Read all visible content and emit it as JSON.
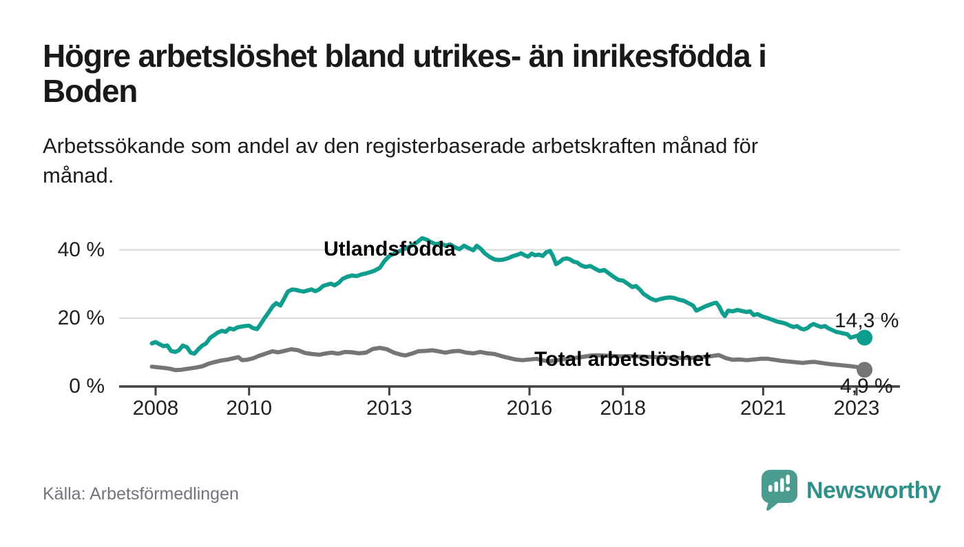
{
  "title": {
    "line1": "Högre arbetslöshet bland utrikes- än inrikesfödda i",
    "line2": "Boden"
  },
  "subtitle": {
    "line1": "Arbetssökande som andel av den registerbaserade arbetskraften månad för",
    "line2": "månad."
  },
  "source": "Källa: Arbetsförmedlingen",
  "logo": {
    "text": "Newsworthy",
    "icon": "speech-bubble-bar-chart-icon",
    "text_color": "#2f9089",
    "bubble_color": "#4a9c91"
  },
  "colors": {
    "background": "#ffffff",
    "title_text": "#191919",
    "tick_text": "#222222",
    "gridline": "#dadada",
    "axis": "#404040",
    "value_label_text": "#1a1a1a",
    "source_text": "#73737b"
  },
  "chart_data": {
    "type": "line",
    "title": "Högre arbetslöshet bland utrikes- än inrikesfödda i Boden",
    "xlabel": "",
    "ylabel": "",
    "legend_position": "inline-labels",
    "grid": "horizontal",
    "x_axis": {
      "ticks": [
        2008,
        2010,
        2013,
        2016,
        2018,
        2021,
        2023
      ],
      "min": 2007.9,
      "max": 2023.9,
      "unit": "year-month"
    },
    "y_axis": {
      "ticks": [
        {
          "label": "0 %",
          "value": 0
        },
        {
          "label": "20 %",
          "value": 20
        },
        {
          "label": "40 %",
          "value": 40
        }
      ],
      "min": 0,
      "max": 44,
      "unit": "%"
    },
    "series": [
      {
        "name": "Utlandsfödda",
        "color": "#0f9e8e",
        "label_color": "#0f9e8e",
        "end_label": "14,3 %",
        "end_value": 14.3,
        "points": [
          [
            2007.92,
            12.6
          ],
          [
            2008.0,
            13.0
          ],
          [
            2008.08,
            12.4
          ],
          [
            2008.17,
            11.8
          ],
          [
            2008.25,
            12.0
          ],
          [
            2008.33,
            10.4
          ],
          [
            2008.42,
            10.1
          ],
          [
            2008.5,
            10.6
          ],
          [
            2008.58,
            12.0
          ],
          [
            2008.67,
            11.5
          ],
          [
            2008.75,
            9.9
          ],
          [
            2008.83,
            9.6
          ],
          [
            2008.92,
            11.0
          ],
          [
            2009.0,
            12.0
          ],
          [
            2009.08,
            12.6
          ],
          [
            2009.17,
            14.3
          ],
          [
            2009.25,
            15.0
          ],
          [
            2009.33,
            15.8
          ],
          [
            2009.42,
            16.3
          ],
          [
            2009.5,
            16.0
          ],
          [
            2009.58,
            17.0
          ],
          [
            2009.67,
            16.7
          ],
          [
            2009.75,
            17.3
          ],
          [
            2009.83,
            17.5
          ],
          [
            2009.92,
            17.7
          ],
          [
            2010.0,
            17.8
          ],
          [
            2010.08,
            17.1
          ],
          [
            2010.17,
            16.8
          ],
          [
            2010.25,
            18.3
          ],
          [
            2010.33,
            20.0
          ],
          [
            2010.42,
            21.7
          ],
          [
            2010.5,
            23.4
          ],
          [
            2010.58,
            24.4
          ],
          [
            2010.67,
            23.7
          ],
          [
            2010.75,
            25.7
          ],
          [
            2010.83,
            27.8
          ],
          [
            2010.92,
            28.4
          ],
          [
            2011.0,
            28.3
          ],
          [
            2011.08,
            28.0
          ],
          [
            2011.17,
            27.8
          ],
          [
            2011.25,
            28.1
          ],
          [
            2011.33,
            28.4
          ],
          [
            2011.42,
            27.9
          ],
          [
            2011.5,
            28.4
          ],
          [
            2011.58,
            29.4
          ],
          [
            2011.67,
            29.8
          ],
          [
            2011.75,
            30.1
          ],
          [
            2011.83,
            29.6
          ],
          [
            2011.92,
            30.4
          ],
          [
            2012.0,
            31.5
          ],
          [
            2012.1,
            32.1
          ],
          [
            2012.2,
            32.5
          ],
          [
            2012.3,
            32.3
          ],
          [
            2012.4,
            32.8
          ],
          [
            2012.5,
            33.1
          ],
          [
            2012.6,
            33.5
          ],
          [
            2012.7,
            34.0
          ],
          [
            2012.8,
            34.8
          ],
          [
            2012.9,
            36.8
          ],
          [
            2013.0,
            38.2
          ],
          [
            2013.15,
            39.2
          ],
          [
            2013.3,
            40.1
          ],
          [
            2013.45,
            41.0
          ],
          [
            2013.6,
            42.3
          ],
          [
            2013.7,
            43.4
          ],
          [
            2013.8,
            43.0
          ],
          [
            2013.9,
            42.2
          ],
          [
            2014.0,
            41.6
          ],
          [
            2014.1,
            42.0
          ],
          [
            2014.2,
            41.2
          ],
          [
            2014.3,
            41.6
          ],
          [
            2014.4,
            40.8
          ],
          [
            2014.5,
            40.2
          ],
          [
            2014.6,
            41.2
          ],
          [
            2014.7,
            40.5
          ],
          [
            2014.8,
            39.9
          ],
          [
            2014.87,
            41.2
          ],
          [
            2014.95,
            40.4
          ],
          [
            2015.05,
            38.9
          ],
          [
            2015.15,
            37.9
          ],
          [
            2015.25,
            37.2
          ],
          [
            2015.35,
            37.0
          ],
          [
            2015.45,
            37.2
          ],
          [
            2015.55,
            37.6
          ],
          [
            2015.65,
            38.2
          ],
          [
            2015.75,
            38.6
          ],
          [
            2015.82,
            39.0
          ],
          [
            2015.9,
            38.4
          ],
          [
            2015.97,
            38.0
          ],
          [
            2016.05,
            38.9
          ],
          [
            2016.12,
            38.4
          ],
          [
            2016.2,
            38.6
          ],
          [
            2016.28,
            38.2
          ],
          [
            2016.36,
            39.3
          ],
          [
            2016.44,
            39.7
          ],
          [
            2016.5,
            38.2
          ],
          [
            2016.57,
            35.8
          ],
          [
            2016.65,
            36.5
          ],
          [
            2016.72,
            37.3
          ],
          [
            2016.8,
            37.5
          ],
          [
            2016.87,
            37.2
          ],
          [
            2016.95,
            36.5
          ],
          [
            2017.02,
            36.3
          ],
          [
            2017.1,
            35.5
          ],
          [
            2017.2,
            35.0
          ],
          [
            2017.3,
            35.3
          ],
          [
            2017.4,
            34.5
          ],
          [
            2017.5,
            33.8
          ],
          [
            2017.6,
            34.1
          ],
          [
            2017.7,
            33.1
          ],
          [
            2017.8,
            32.1
          ],
          [
            2017.9,
            31.2
          ],
          [
            2018.0,
            31.0
          ],
          [
            2018.1,
            30.1
          ],
          [
            2018.2,
            29.1
          ],
          [
            2018.28,
            29.4
          ],
          [
            2018.36,
            28.4
          ],
          [
            2018.44,
            27.1
          ],
          [
            2018.52,
            26.4
          ],
          [
            2018.6,
            25.7
          ],
          [
            2018.7,
            25.2
          ],
          [
            2018.8,
            25.6
          ],
          [
            2018.9,
            25.9
          ],
          [
            2019.0,
            26.1
          ],
          [
            2019.1,
            25.9
          ],
          [
            2019.2,
            25.4
          ],
          [
            2019.3,
            25.1
          ],
          [
            2019.4,
            24.4
          ],
          [
            2019.5,
            23.7
          ],
          [
            2019.57,
            22.2
          ],
          [
            2019.65,
            22.7
          ],
          [
            2019.75,
            23.4
          ],
          [
            2019.85,
            23.9
          ],
          [
            2019.95,
            24.4
          ],
          [
            2020.0,
            24.5
          ],
          [
            2020.06,
            23.4
          ],
          [
            2020.12,
            21.7
          ],
          [
            2020.18,
            20.6
          ],
          [
            2020.25,
            22.2
          ],
          [
            2020.35,
            22.0
          ],
          [
            2020.45,
            22.4
          ],
          [
            2020.55,
            22.1
          ],
          [
            2020.65,
            21.8
          ],
          [
            2020.72,
            22.0
          ],
          [
            2020.8,
            20.9
          ],
          [
            2020.88,
            21.2
          ],
          [
            2020.95,
            20.7
          ],
          [
            2021.0,
            20.4
          ],
          [
            2021.1,
            20.0
          ],
          [
            2021.2,
            19.5
          ],
          [
            2021.3,
            19.0
          ],
          [
            2021.4,
            18.7
          ],
          [
            2021.5,
            18.3
          ],
          [
            2021.57,
            17.8
          ],
          [
            2021.65,
            17.4
          ],
          [
            2021.72,
            17.7
          ],
          [
            2021.8,
            17.0
          ],
          [
            2021.87,
            16.7
          ],
          [
            2021.95,
            17.1
          ],
          [
            2022.02,
            17.9
          ],
          [
            2022.08,
            18.3
          ],
          [
            2022.16,
            17.8
          ],
          [
            2022.24,
            17.4
          ],
          [
            2022.32,
            17.7
          ],
          [
            2022.4,
            17.0
          ],
          [
            2022.48,
            16.5
          ],
          [
            2022.56,
            16.0
          ],
          [
            2022.64,
            15.8
          ],
          [
            2022.72,
            15.5
          ],
          [
            2022.8,
            15.3
          ],
          [
            2022.87,
            14.3
          ],
          [
            2022.95,
            14.6
          ],
          [
            2023.02,
            14.9
          ],
          [
            2023.08,
            14.3
          ],
          [
            2023.13,
            14.8
          ],
          [
            2023.17,
            14.3
          ]
        ]
      },
      {
        "name": "Total arbetslöshet",
        "color": "#757575",
        "label_color": "#6a6a6a",
        "end_label": "4,9 %",
        "end_value": 4.9,
        "points": [
          [
            2007.92,
            5.8
          ],
          [
            2008.05,
            5.6
          ],
          [
            2008.2,
            5.4
          ],
          [
            2008.3,
            5.2
          ],
          [
            2008.42,
            4.8
          ],
          [
            2008.55,
            4.9
          ],
          [
            2008.7,
            5.2
          ],
          [
            2008.85,
            5.5
          ],
          [
            2009.0,
            5.9
          ],
          [
            2009.12,
            6.6
          ],
          [
            2009.25,
            7.1
          ],
          [
            2009.4,
            7.6
          ],
          [
            2009.55,
            7.9
          ],
          [
            2009.68,
            8.3
          ],
          [
            2009.77,
            8.6
          ],
          [
            2009.85,
            7.7
          ],
          [
            2009.95,
            7.8
          ],
          [
            2010.1,
            8.3
          ],
          [
            2010.2,
            8.9
          ],
          [
            2010.35,
            9.6
          ],
          [
            2010.5,
            10.3
          ],
          [
            2010.62,
            10.0
          ],
          [
            2010.75,
            10.4
          ],
          [
            2010.9,
            10.9
          ],
          [
            2011.05,
            10.6
          ],
          [
            2011.2,
            9.8
          ],
          [
            2011.35,
            9.5
          ],
          [
            2011.5,
            9.3
          ],
          [
            2011.65,
            9.7
          ],
          [
            2011.78,
            9.9
          ],
          [
            2011.9,
            9.6
          ],
          [
            2012.05,
            10.1
          ],
          [
            2012.2,
            10.0
          ],
          [
            2012.35,
            9.7
          ],
          [
            2012.5,
            9.9
          ],
          [
            2012.65,
            11.0
          ],
          [
            2012.8,
            11.3
          ],
          [
            2012.95,
            10.9
          ],
          [
            2013.1,
            9.9
          ],
          [
            2013.25,
            9.3
          ],
          [
            2013.35,
            9.1
          ],
          [
            2013.5,
            9.7
          ],
          [
            2013.62,
            10.3
          ],
          [
            2013.78,
            10.4
          ],
          [
            2013.92,
            10.6
          ],
          [
            2014.05,
            10.3
          ],
          [
            2014.2,
            9.9
          ],
          [
            2014.35,
            10.3
          ],
          [
            2014.5,
            10.4
          ],
          [
            2014.65,
            9.9
          ],
          [
            2014.8,
            9.7
          ],
          [
            2014.95,
            10.1
          ],
          [
            2015.1,
            9.7
          ],
          [
            2015.25,
            9.5
          ],
          [
            2015.4,
            8.9
          ],
          [
            2015.55,
            8.4
          ],
          [
            2015.7,
            7.9
          ],
          [
            2015.85,
            7.7
          ],
          [
            2016.0,
            7.9
          ],
          [
            2016.15,
            8.1
          ],
          [
            2016.3,
            7.6
          ],
          [
            2016.45,
            7.4
          ],
          [
            2016.6,
            7.7
          ],
          [
            2016.75,
            8.0
          ],
          [
            2016.9,
            8.2
          ],
          [
            2017.05,
            8.5
          ],
          [
            2017.2,
            8.8
          ],
          [
            2017.35,
            9.1
          ],
          [
            2017.5,
            9.1
          ],
          [
            2017.65,
            9.0
          ],
          [
            2017.8,
            8.9
          ],
          [
            2017.95,
            8.8
          ],
          [
            2018.1,
            8.9
          ],
          [
            2018.3,
            8.8
          ],
          [
            2018.5,
            8.7
          ],
          [
            2018.7,
            8.6
          ],
          [
            2018.9,
            8.5
          ],
          [
            2019.1,
            8.4
          ],
          [
            2019.3,
            8.3
          ],
          [
            2019.5,
            8.4
          ],
          [
            2019.7,
            8.6
          ],
          [
            2019.9,
            8.9
          ],
          [
            2020.05,
            9.2
          ],
          [
            2020.2,
            8.3
          ],
          [
            2020.35,
            7.8
          ],
          [
            2020.5,
            7.9
          ],
          [
            2020.65,
            7.7
          ],
          [
            2020.8,
            7.9
          ],
          [
            2020.95,
            8.1
          ],
          [
            2021.1,
            8.1
          ],
          [
            2021.25,
            7.8
          ],
          [
            2021.4,
            7.5
          ],
          [
            2021.55,
            7.3
          ],
          [
            2021.7,
            7.1
          ],
          [
            2021.85,
            6.9
          ],
          [
            2021.97,
            7.1
          ],
          [
            2022.1,
            7.2
          ],
          [
            2022.25,
            6.9
          ],
          [
            2022.4,
            6.6
          ],
          [
            2022.55,
            6.4
          ],
          [
            2022.7,
            6.2
          ],
          [
            2022.85,
            6.0
          ],
          [
            2023.0,
            5.7
          ],
          [
            2023.1,
            5.3
          ],
          [
            2023.17,
            4.9
          ]
        ]
      }
    ]
  }
}
